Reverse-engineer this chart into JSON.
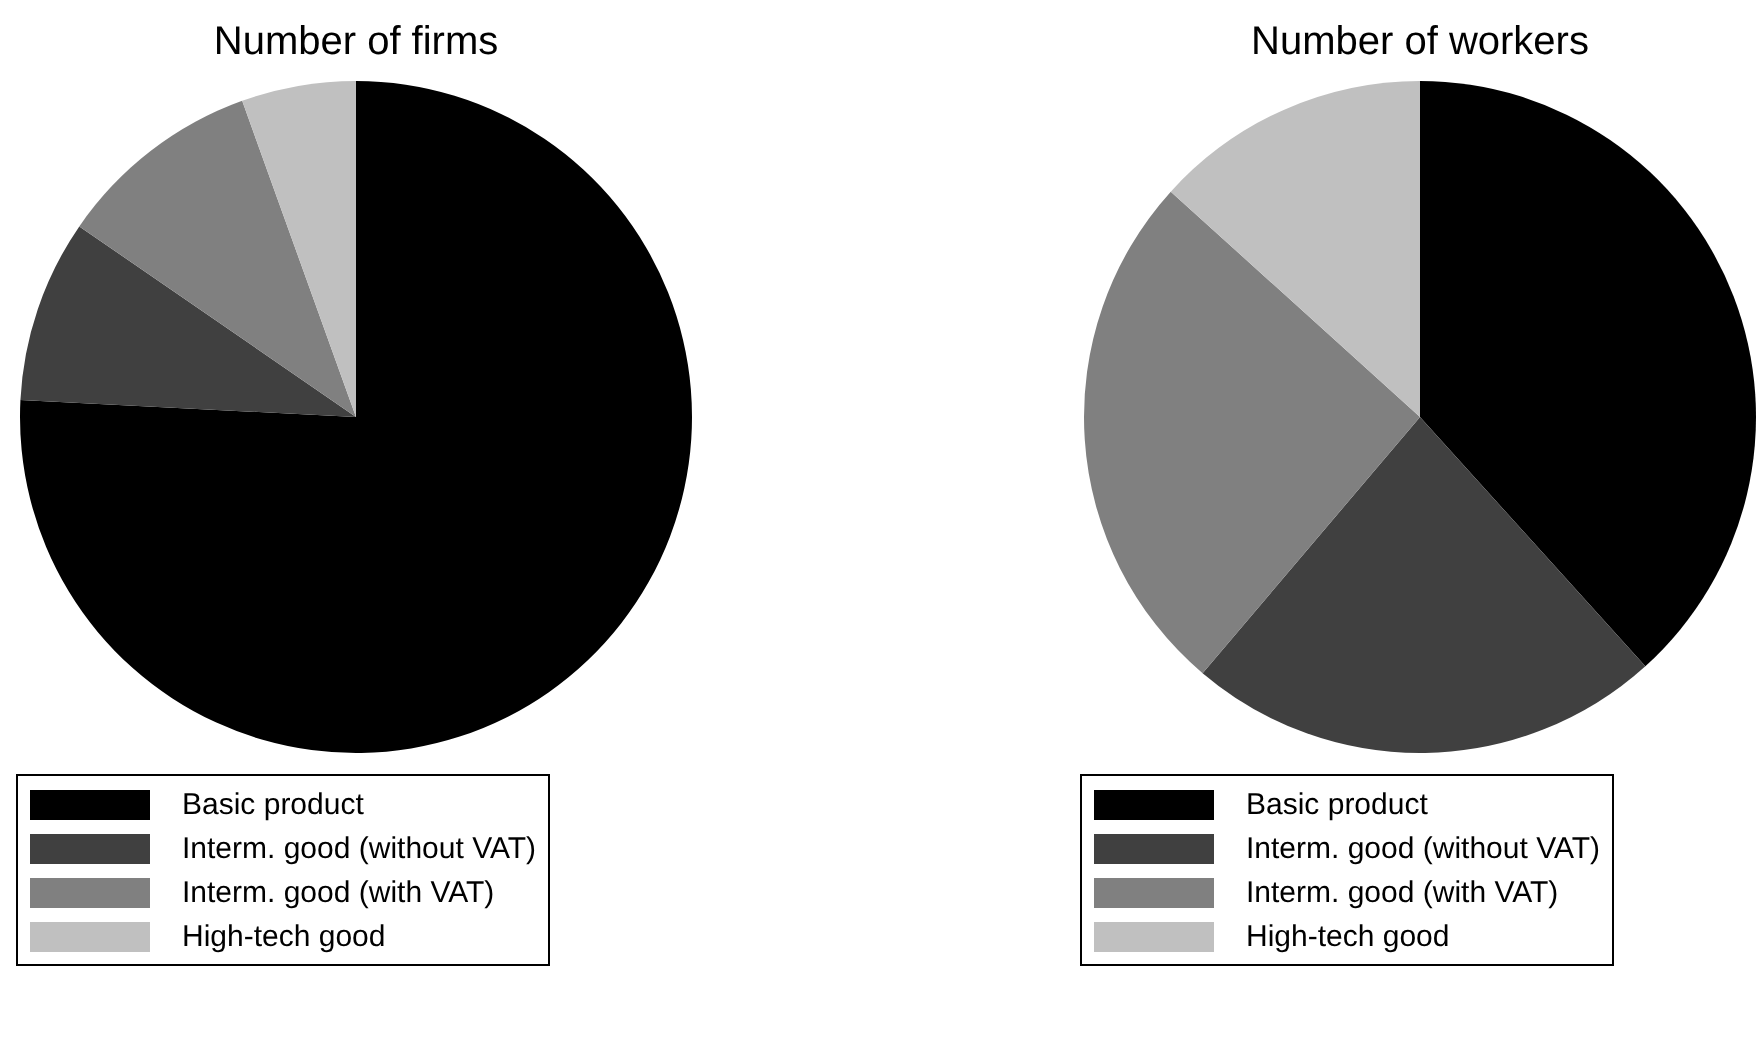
{
  "chart_data": [
    {
      "type": "pie",
      "title": "Number of firms",
      "categories": [
        "Basic product",
        "Interm. good (without VAT)",
        "Interm. good (with VAT)",
        "High-tech good"
      ],
      "values": [
        75.8,
        8.8,
        9.9,
        5.5
      ],
      "colors": [
        "#000000",
        "#404040",
        "#808080",
        "#c0c0c0"
      ],
      "legend": "bottom left"
    },
    {
      "type": "pie",
      "title": "Number of workers",
      "categories": [
        "Basic product",
        "Interm. good (without VAT)",
        "Interm. good (with VAT)",
        "High-tech good"
      ],
      "values": [
        38.3,
        22.9,
        25.5,
        13.3
      ],
      "colors": [
        "#000000",
        "#404040",
        "#808080",
        "#c0c0c0"
      ],
      "legend": "bottom left"
    }
  ]
}
